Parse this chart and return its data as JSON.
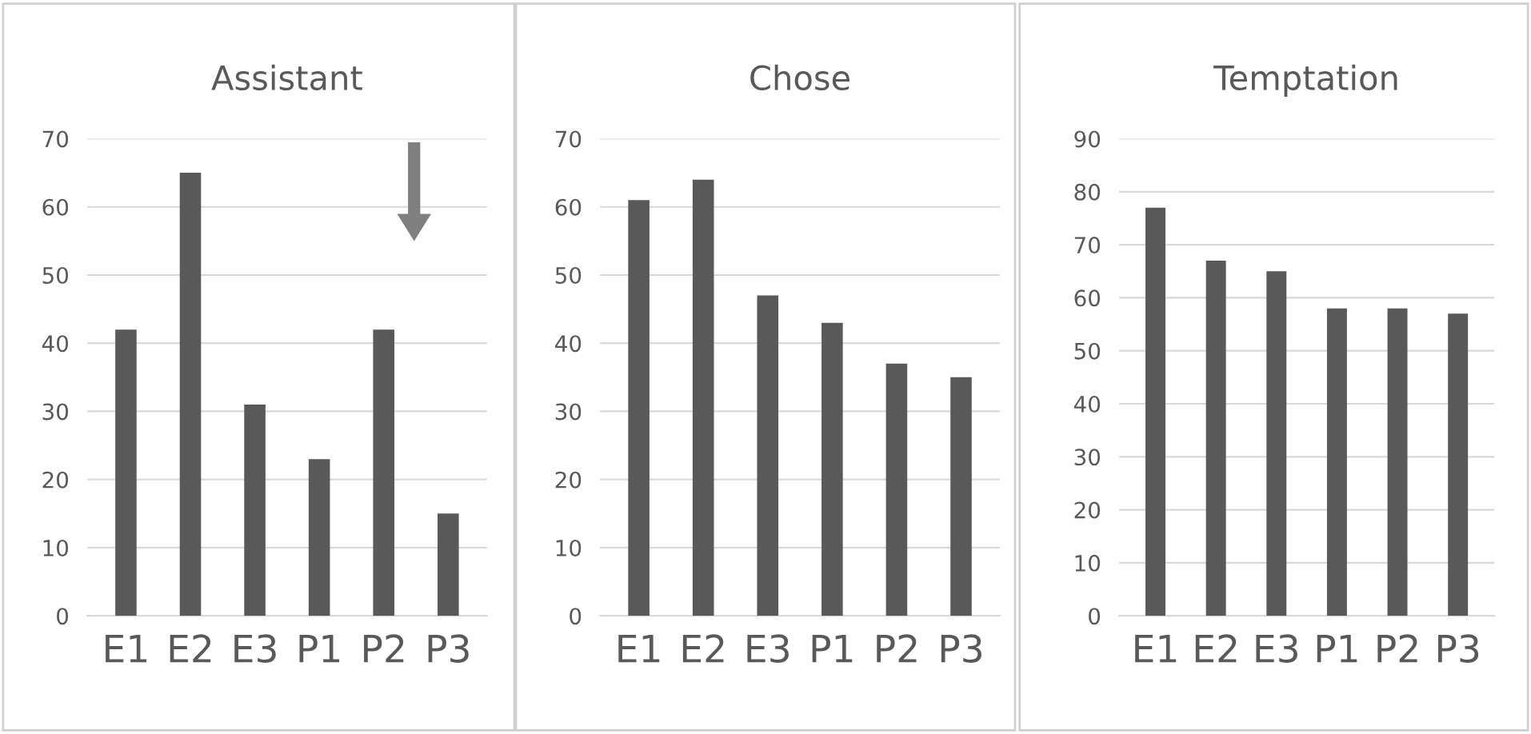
{
  "chart_data": [
    {
      "type": "bar",
      "title": "Assistant",
      "categories": [
        "E1",
        "E2",
        "E3",
        "P1",
        "P2",
        "P3"
      ],
      "values": [
        42,
        65,
        31,
        23,
        42,
        15
      ],
      "color": "#595959",
      "ylim": [
        0,
        70
      ],
      "yticks": [
        0,
        10,
        20,
        30,
        40,
        50,
        60,
        70
      ],
      "grid": "y"
    },
    {
      "type": "bar",
      "title": "Chose",
      "categories": [
        "E1",
        "E2",
        "E3",
        "P1",
        "P2",
        "P3"
      ],
      "values": [
        61,
        64,
        47,
        43,
        37,
        35
      ],
      "color": "#595959",
      "ylim": [
        0,
        70
      ],
      "yticks": [
        0,
        10,
        20,
        30,
        40,
        50,
        60,
        70
      ],
      "grid": "y"
    },
    {
      "type": "bar",
      "title": "Temptation",
      "categories": [
        "E1",
        "E2",
        "E3",
        "P1",
        "P2",
        "P3"
      ],
      "values": [
        77,
        67,
        65,
        58,
        58,
        57
      ],
      "color": "#595959",
      "ylim": [
        0,
        90
      ],
      "yticks": [
        0,
        10,
        20,
        30,
        40,
        50,
        60,
        70,
        80,
        90
      ],
      "grid": "y"
    }
  ]
}
